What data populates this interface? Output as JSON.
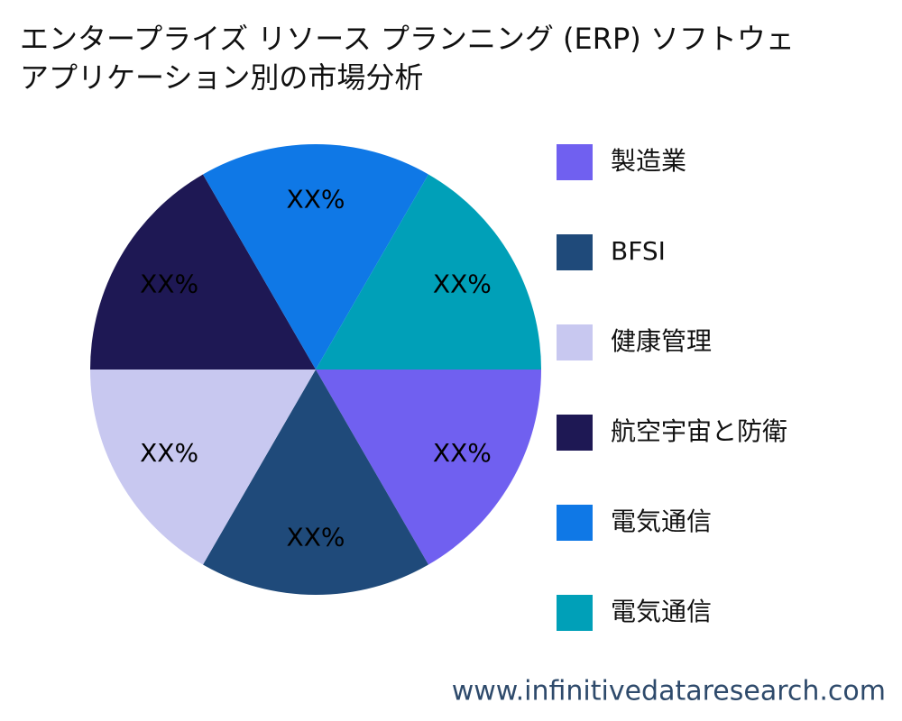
{
  "chart_data": {
    "type": "pie",
    "title": [
      "エンタープライズ リソース プランニング (ERP) ソフトウェ",
      "アプリケーション別の市場分析"
    ],
    "categories": [
      "製造業",
      "BFSI",
      "健康管理",
      "航空宇宙と防衛",
      "電気通信",
      "電気通信"
    ],
    "values": [
      16.7,
      16.7,
      16.7,
      16.7,
      16.7,
      16.7
    ],
    "value_labels": [
      "XX%",
      "XX%",
      "XX%",
      "XX%",
      "XX%",
      "XX%"
    ],
    "colors": [
      "#7060f0",
      "#1f4a7a",
      "#c8c8f0",
      "#1e1854",
      "#0f78e6",
      "#00a0b8"
    ],
    "legend": "right",
    "watermark": "www.infinitivedataresearch.com"
  }
}
